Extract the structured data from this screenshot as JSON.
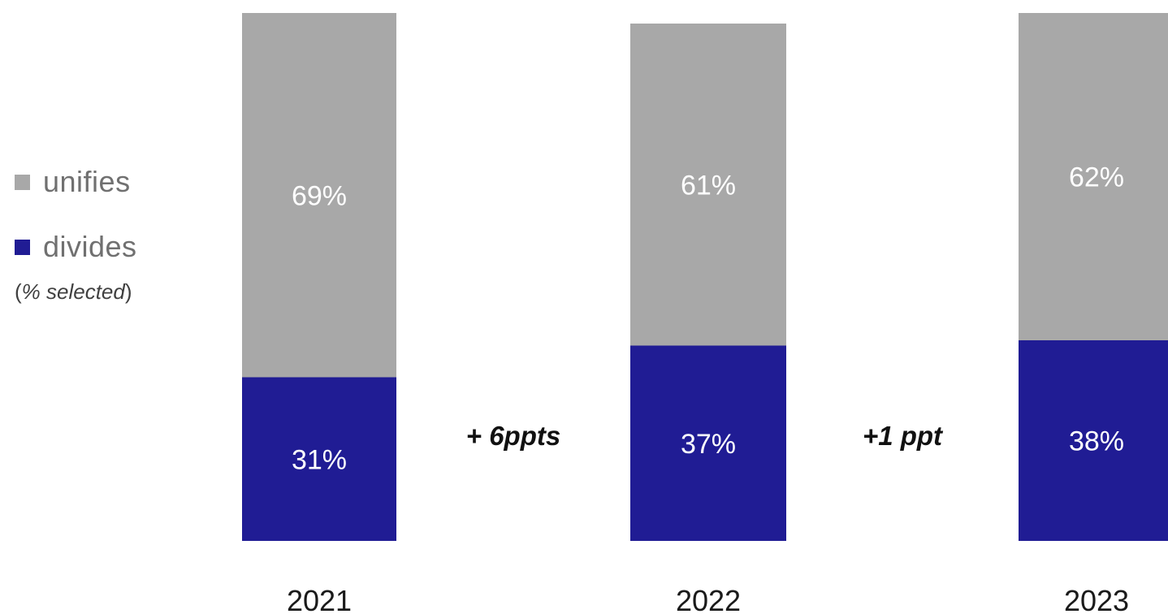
{
  "legend": {
    "items": [
      {
        "label": "unifies",
        "color": "#a8a8a8"
      },
      {
        "label": "divides",
        "color": "#201c94"
      }
    ],
    "note_open": "(",
    "note_core": "% selected",
    "note_close": ")"
  },
  "chart_data": {
    "type": "bar",
    "stacked": true,
    "categories": [
      "2021",
      "2022",
      "2023"
    ],
    "series": [
      {
        "name": "divides",
        "values": [
          31,
          37,
          38
        ],
        "color": "#201c94"
      },
      {
        "name": "unifies",
        "values": [
          69,
          61,
          62
        ],
        "color": "#a8a8a8"
      }
    ],
    "data_labels": {
      "divides": [
        "31%",
        "37%",
        "38%"
      ],
      "unifies": [
        "69%",
        "61%",
        "62%"
      ]
    },
    "annotations": [
      {
        "text": "+ 6ppts",
        "between": [
          "2021",
          "2022"
        ]
      },
      {
        "text": "+1 ppt",
        "between": [
          "2022",
          "2023"
        ]
      }
    ],
    "ylim": [
      0,
      100
    ],
    "grid": false,
    "legend_position": "left"
  }
}
